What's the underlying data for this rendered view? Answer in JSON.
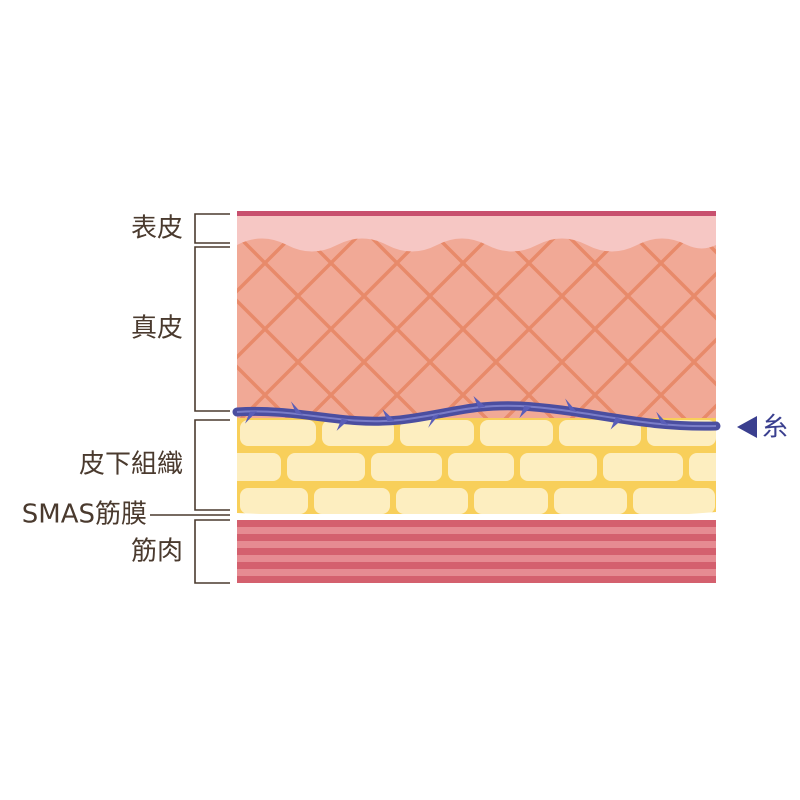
{
  "layers": [
    {
      "label": "表皮"
    },
    {
      "label": "真皮"
    },
    {
      "label": "皮下組織"
    },
    {
      "label": "SMAS筋膜"
    },
    {
      "label": "筋肉"
    }
  ],
  "thread": {
    "label": "糸"
  }
}
